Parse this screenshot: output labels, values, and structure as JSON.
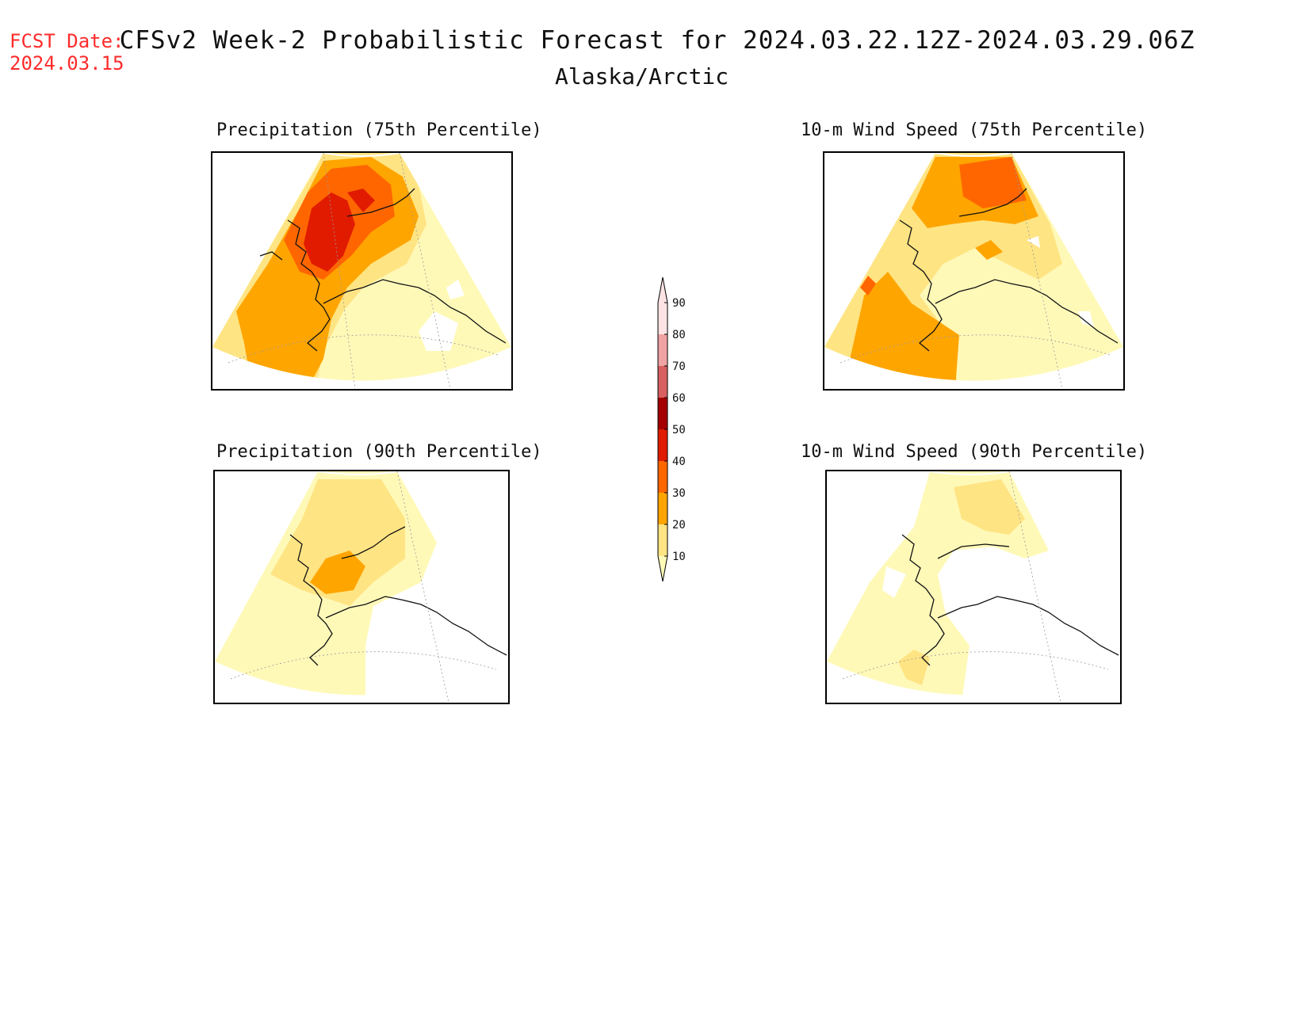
{
  "header": {
    "fcst_label": "FCST Date:",
    "fcst_date": "2024.03.15",
    "title": "CFSv2 Week-2 Probabilistic Forecast for 2024.03.22.12Z-2024.03.29.06Z",
    "subtitle": "Alaska/Arctic"
  },
  "panels": [
    {
      "title": "Precipitation (75th Percentile)"
    },
    {
      "title": "10-m Wind Speed (75th Percentile)"
    },
    {
      "title": "Precipitation (90th Percentile)"
    },
    {
      "title": "10-m Wind Speed (90th Percentile)"
    }
  ],
  "colorbar": {
    "ticks": [
      "10",
      "20",
      "30",
      "40",
      "50",
      "60",
      "70",
      "80",
      "90"
    ],
    "colors": [
      "#fff9b8",
      "#ffe483",
      "#ffa500",
      "#ff6600",
      "#e11b00",
      "#a50000",
      "#d96060",
      "#f0a3a3",
      "#fde3e3"
    ]
  }
}
